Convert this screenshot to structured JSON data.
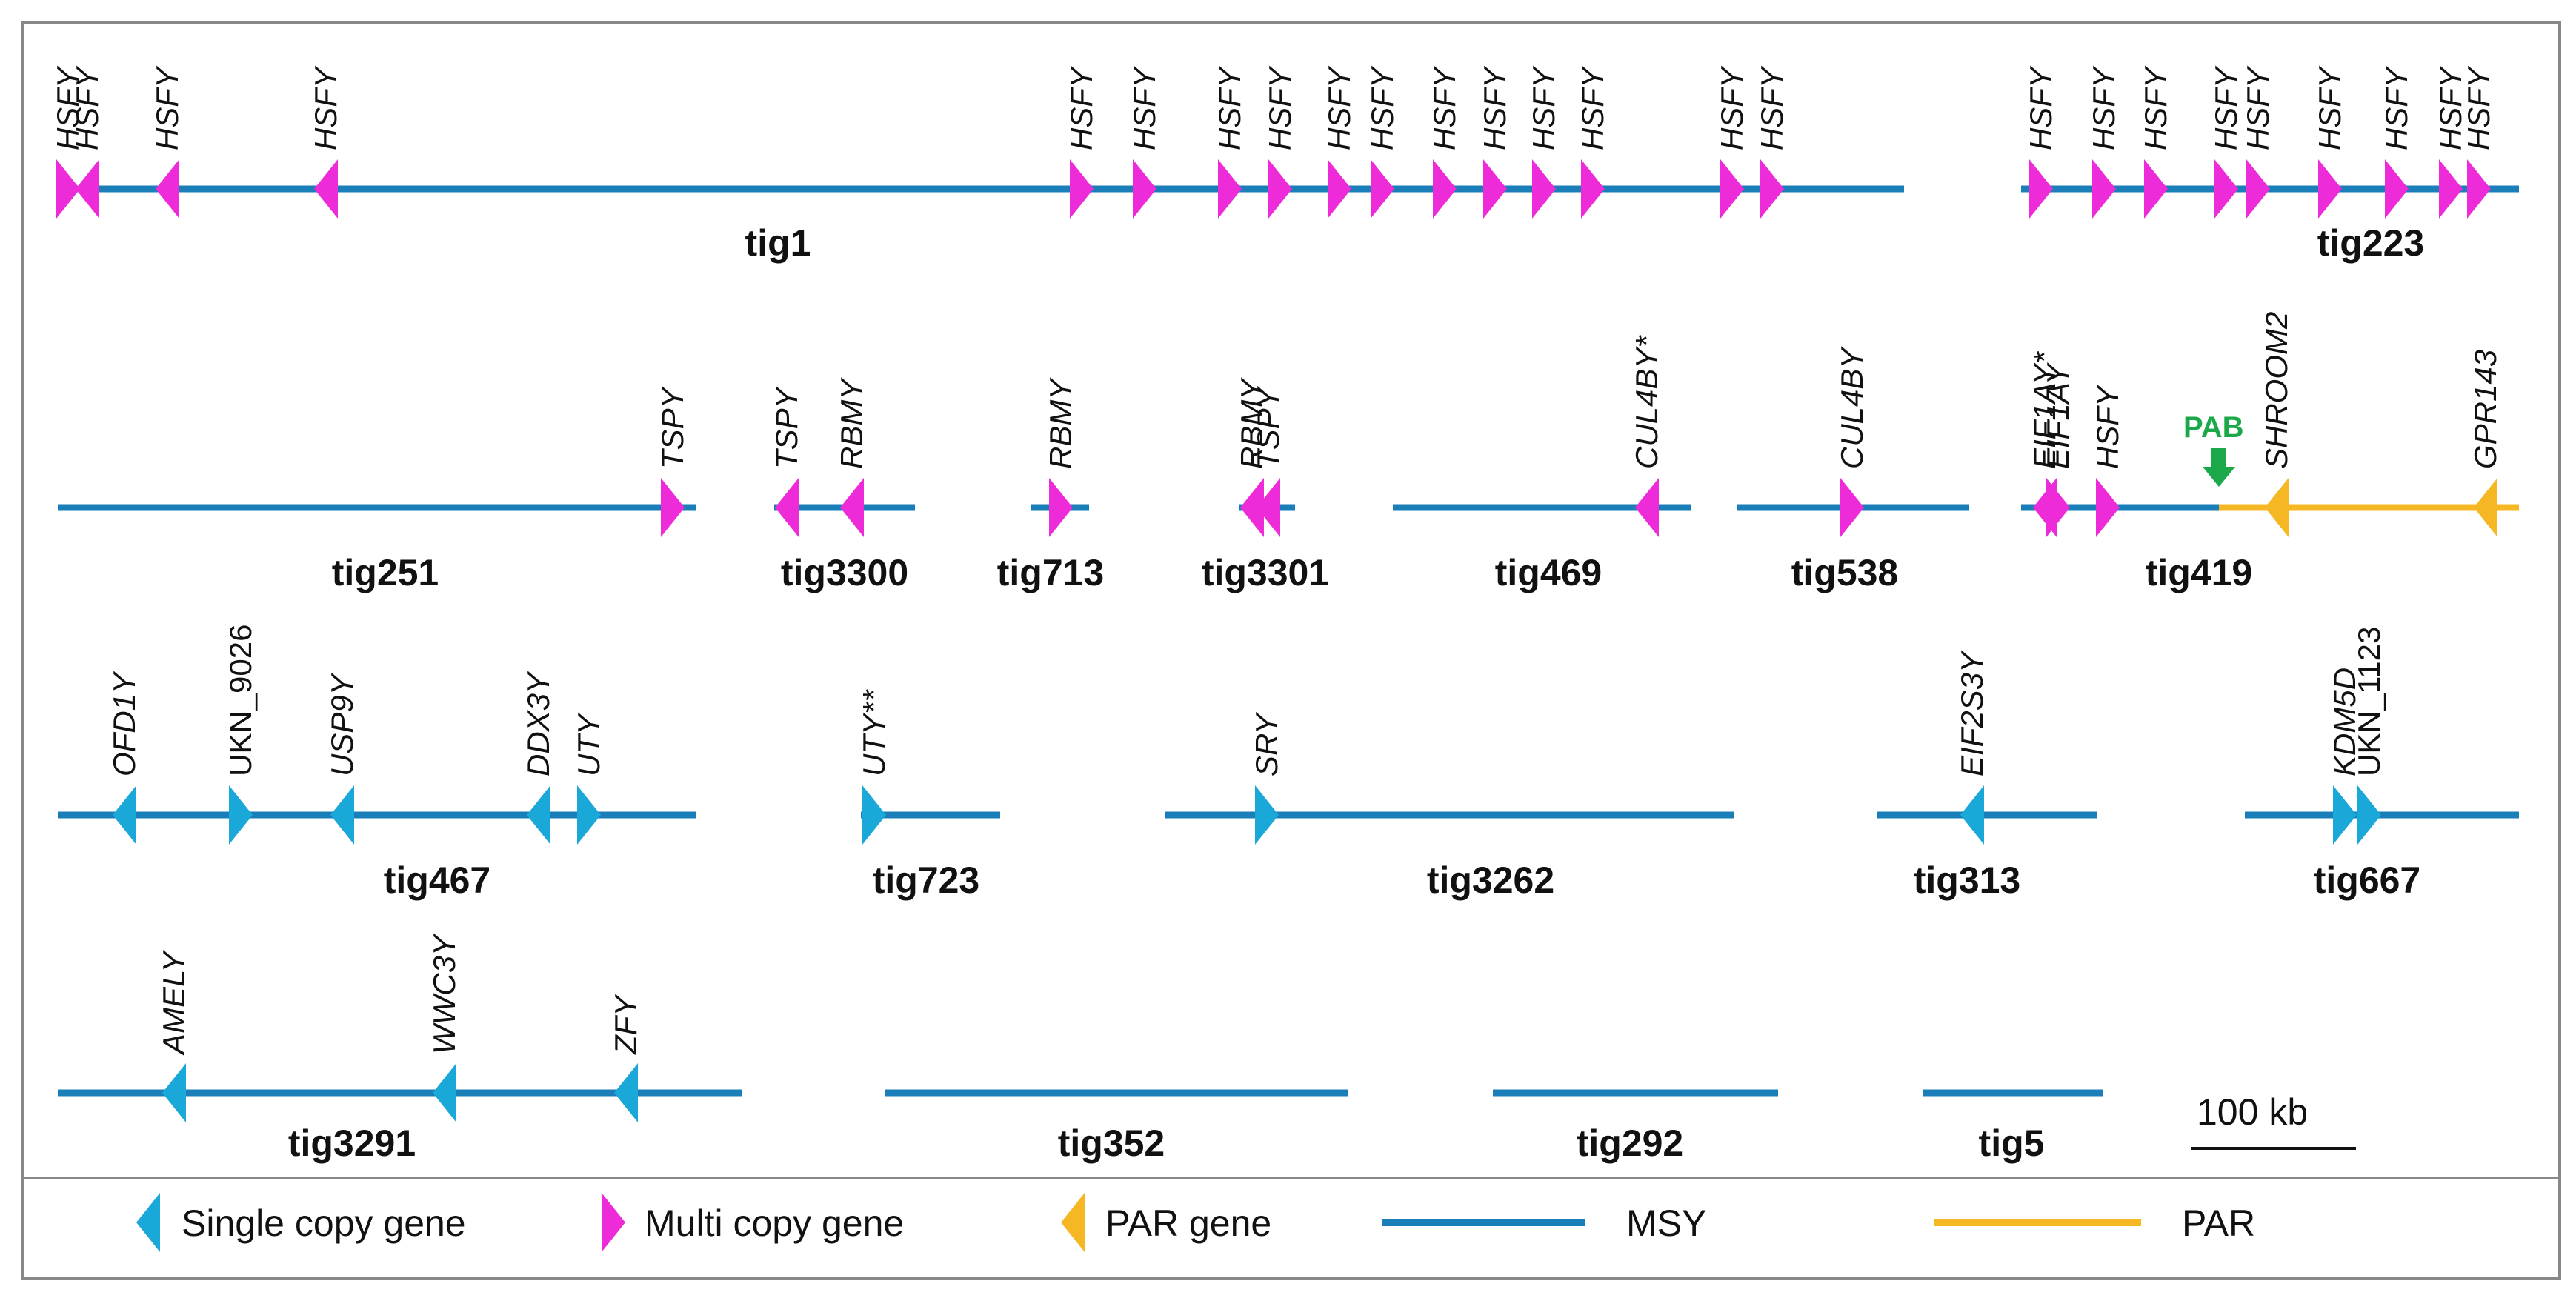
{
  "colors": {
    "msy": "#1a7fb8",
    "par": "#f5b824",
    "single_copy": "#1aa8d8",
    "multi_copy": "#ee2bd8",
    "par_gene": "#f5b824",
    "pab": "#1aa84a",
    "frame": "#888888"
  },
  "contigs": [
    {
      "name": "tig1",
      "genes": [
        {
          "label": "HSFY",
          "type": "multi",
          "dir": "right"
        },
        {
          "label": "HSFY",
          "type": "multi",
          "dir": "left"
        },
        {
          "label": "HSFY",
          "type": "multi",
          "dir": "left"
        },
        {
          "label": "HSFY",
          "type": "multi",
          "dir": "left"
        },
        {
          "label": "HSFY",
          "type": "multi",
          "dir": "right"
        },
        {
          "label": "HSFY",
          "type": "multi",
          "dir": "right"
        },
        {
          "label": "HSFY",
          "type": "multi",
          "dir": "right"
        },
        {
          "label": "HSFY",
          "type": "multi",
          "dir": "right"
        },
        {
          "label": "HSFY",
          "type": "multi",
          "dir": "right"
        },
        {
          "label": "HSFY",
          "type": "multi",
          "dir": "right"
        },
        {
          "label": "HSFY",
          "type": "multi",
          "dir": "right"
        },
        {
          "label": "HSFY",
          "type": "multi",
          "dir": "right"
        },
        {
          "label": "HSFY",
          "type": "multi",
          "dir": "right"
        },
        {
          "label": "HSFY",
          "type": "multi",
          "dir": "right"
        },
        {
          "label": "HSFY",
          "type": "multi",
          "dir": "right"
        },
        {
          "label": "HSFY",
          "type": "multi",
          "dir": "right"
        }
      ]
    },
    {
      "name": "tig223",
      "genes": [
        {
          "label": "HSFY",
          "type": "multi",
          "dir": "right"
        },
        {
          "label": "HSFY",
          "type": "multi",
          "dir": "right"
        },
        {
          "label": "HSFY",
          "type": "multi",
          "dir": "right"
        },
        {
          "label": "HSFY",
          "type": "multi",
          "dir": "right"
        },
        {
          "label": "HSFY",
          "type": "multi",
          "dir": "right"
        },
        {
          "label": "HSFY",
          "type": "multi",
          "dir": "right"
        },
        {
          "label": "HSFY",
          "type": "multi",
          "dir": "right"
        },
        {
          "label": "HSFY",
          "type": "multi",
          "dir": "right"
        },
        {
          "label": "HSFY",
          "type": "multi",
          "dir": "right"
        }
      ]
    },
    {
      "name": "tig251",
      "genes": [
        {
          "label": "TSPY",
          "type": "multi",
          "dir": "right"
        }
      ]
    },
    {
      "name": "tig3300",
      "genes": [
        {
          "label": "TSPY",
          "type": "multi",
          "dir": "left"
        },
        {
          "label": "RBMY",
          "type": "multi",
          "dir": "left"
        }
      ]
    },
    {
      "name": "tig713",
      "genes": [
        {
          "label": "RBMY",
          "type": "multi",
          "dir": "right"
        }
      ]
    },
    {
      "name": "tig3301",
      "genes": [
        {
          "label": "RBMY",
          "type": "multi",
          "dir": "left"
        },
        {
          "label": "TSPY",
          "type": "multi",
          "dir": "left"
        }
      ]
    },
    {
      "name": "tig469",
      "genes": [
        {
          "label": "CUL4BY*",
          "type": "multi",
          "dir": "left"
        }
      ]
    },
    {
      "name": "tig538",
      "genes": [
        {
          "label": "CUL4BY",
          "type": "multi",
          "dir": "right"
        }
      ]
    },
    {
      "name": "tig419",
      "pab_label": "PAB",
      "genes": [
        {
          "label": "EIF1AY*",
          "type": "multi",
          "dir": "left"
        },
        {
          "label": "EIF1AY",
          "type": "multi",
          "dir": "right"
        },
        {
          "label": "HSFY",
          "type": "multi",
          "dir": "right"
        },
        {
          "label": "SHROOM2",
          "type": "par",
          "dir": "left"
        },
        {
          "label": "GPR143",
          "type": "par",
          "dir": "left"
        }
      ]
    },
    {
      "name": "tig467",
      "genes": [
        {
          "label": "OFD1Y",
          "type": "single",
          "dir": "left"
        },
        {
          "label": "UKN_9026",
          "type": "single",
          "dir": "right"
        },
        {
          "label": "USP9Y",
          "type": "single",
          "dir": "left"
        },
        {
          "label": "DDX3Y",
          "type": "single",
          "dir": "left"
        },
        {
          "label": "UTY",
          "type": "single",
          "dir": "right"
        }
      ]
    },
    {
      "name": "tig723",
      "genes": [
        {
          "label": "UTY**",
          "type": "single",
          "dir": "right"
        }
      ]
    },
    {
      "name": "tig3262",
      "genes": [
        {
          "label": "SRY",
          "type": "single",
          "dir": "right"
        }
      ]
    },
    {
      "name": "tig313",
      "genes": [
        {
          "label": "EIF2S3Y",
          "type": "single",
          "dir": "left"
        }
      ]
    },
    {
      "name": "tig667",
      "genes": [
        {
          "label": "KDM5D",
          "type": "single",
          "dir": "right"
        },
        {
          "label": "UKN_1123",
          "type": "single",
          "dir": "right"
        }
      ]
    },
    {
      "name": "tig3291",
      "genes": [
        {
          "label": "AMELY",
          "type": "single",
          "dir": "left"
        },
        {
          "label": "WWC3Y",
          "type": "single",
          "dir": "left"
        },
        {
          "label": "ZFY",
          "type": "single",
          "dir": "left"
        }
      ]
    },
    {
      "name": "tig352",
      "genes": []
    },
    {
      "name": "tig292",
      "genes": []
    },
    {
      "name": "tig5",
      "genes": []
    }
  ],
  "scale_bar": {
    "label": "100 kb"
  },
  "legend": [
    {
      "label": "Single copy gene",
      "kind": "single"
    },
    {
      "label": "Multi copy gene",
      "kind": "multi"
    },
    {
      "label": "PAR gene",
      "kind": "par"
    },
    {
      "label": "MSY",
      "kind": "msy-line"
    },
    {
      "label": "PAR",
      "kind": "par-line"
    }
  ]
}
